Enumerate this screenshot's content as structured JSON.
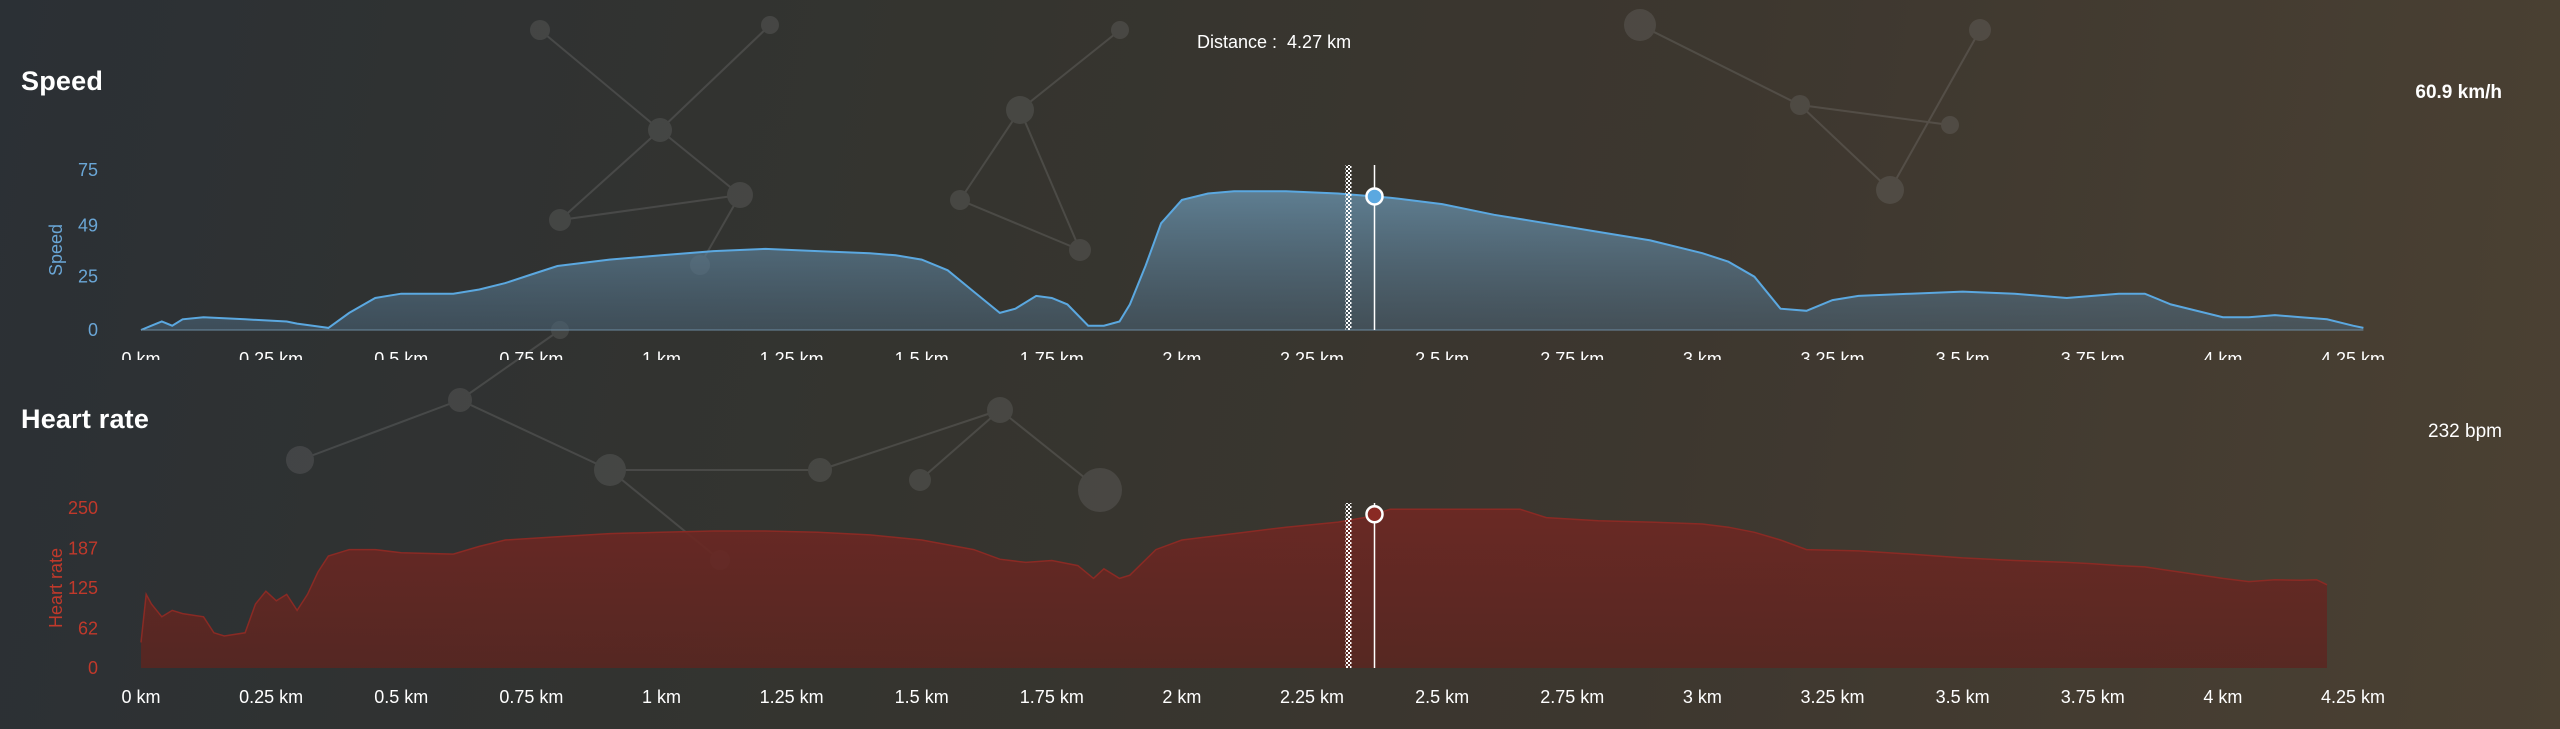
{
  "header": {
    "distance_label": "Distance :",
    "distance_value": "4.27 km"
  },
  "speed": {
    "title": "Speed",
    "current_value": "60.9 km/h"
  },
  "heart_rate": {
    "title": "Heart rate",
    "current_value": "232 bpm"
  },
  "colors": {
    "speed_line": "#5ba8e0",
    "speed_axis_text": "#6aa6d6",
    "hr_line": "#8a2a24",
    "hr_axis_text": "#c0392b",
    "cursor_line": "#ffffff"
  },
  "cursor": {
    "distance_km": 2.37,
    "marker_km": 2.32
  },
  "chart_data": [
    {
      "type": "area",
      "title": "Speed",
      "xlabel": "",
      "ylabel": "Speed",
      "xlim": [
        0,
        4.3
      ],
      "ylim": [
        0,
        75
      ],
      "yticks": [
        0,
        25,
        49,
        75
      ],
      "xticks": [
        0,
        0.25,
        0.5,
        0.75,
        1,
        1.25,
        1.5,
        1.75,
        2,
        2.25,
        2.5,
        2.75,
        3,
        3.25,
        3.5,
        3.75,
        4,
        4.25
      ],
      "xtick_labels": [
        "0 km",
        "0.25 km",
        "0.5 km",
        "0.75 km",
        "1 km",
        "1.25 km",
        "1.5 km",
        "1.75 km",
        "2 km",
        "2.25 km",
        "2.5 km",
        "2.75 km",
        "3 km",
        "3.25 km",
        "3.5 km",
        "3.75 km",
        "4 km",
        "4.25 km"
      ],
      "ytick_labels": [
        "0",
        "25",
        "49",
        "75"
      ],
      "grid": false,
      "x": [
        0,
        0.02,
        0.04,
        0.06,
        0.08,
        0.12,
        0.2,
        0.28,
        0.3,
        0.33,
        0.36,
        0.4,
        0.45,
        0.5,
        0.6,
        0.65,
        0.7,
        0.75,
        0.8,
        0.9,
        1.0,
        1.1,
        1.2,
        1.3,
        1.4,
        1.45,
        1.5,
        1.55,
        1.6,
        1.65,
        1.68,
        1.72,
        1.75,
        1.78,
        1.82,
        1.85,
        1.88,
        1.9,
        1.93,
        1.96,
        2.0,
        2.05,
        2.1,
        2.2,
        2.3,
        2.4,
        2.5,
        2.6,
        2.7,
        2.8,
        2.9,
        3.0,
        3.05,
        3.1,
        3.15,
        3.2,
        3.25,
        3.3,
        3.4,
        3.5,
        3.6,
        3.7,
        3.75,
        3.8,
        3.85,
        3.9,
        4.0,
        4.05,
        4.1,
        4.15,
        4.2,
        4.25,
        4.27
      ],
      "y": [
        0,
        2,
        4,
        2,
        5,
        6,
        5,
        4,
        3,
        2,
        1,
        8,
        15,
        17,
        17,
        19,
        22,
        26,
        30,
        33,
        35,
        37,
        38,
        37,
        36,
        35,
        33,
        28,
        18,
        8,
        10,
        16,
        15,
        12,
        2,
        2,
        4,
        12,
        30,
        50,
        61,
        64,
        65,
        65,
        64,
        62,
        59,
        54,
        50,
        46,
        42,
        36,
        32,
        25,
        10,
        9,
        14,
        16,
        17,
        18,
        17,
        15,
        16,
        17,
        17,
        12,
        6,
        6,
        7,
        6,
        5,
        2,
        1
      ]
    },
    {
      "type": "area",
      "title": "Heart rate",
      "xlabel": "",
      "ylabel": "Heart rate",
      "xlim": [
        0,
        4.3
      ],
      "ylim": [
        0,
        250
      ],
      "yticks": [
        0,
        62,
        125,
        187,
        250
      ],
      "xticks": [
        0,
        0.25,
        0.5,
        0.75,
        1,
        1.25,
        1.5,
        1.75,
        2,
        2.25,
        2.5,
        2.75,
        3,
        3.25,
        3.5,
        3.75,
        4,
        4.25
      ],
      "xtick_labels": [
        "0 km",
        "0.25 km",
        "0.5 km",
        "0.75 km",
        "1 km",
        "1.25 km",
        "1.5 km",
        "1.75 km",
        "2 km",
        "2.25 km",
        "2.5 km",
        "2.75 km",
        "3 km",
        "3.25 km",
        "3.5 km",
        "3.75 km",
        "4 km",
        "4.25 km"
      ],
      "ytick_labels": [
        "0",
        "62",
        "125",
        "187",
        "250"
      ],
      "grid": false,
      "x": [
        0,
        0.01,
        0.02,
        0.04,
        0.06,
        0.08,
        0.12,
        0.14,
        0.16,
        0.2,
        0.22,
        0.24,
        0.26,
        0.28,
        0.3,
        0.32,
        0.34,
        0.36,
        0.38,
        0.4,
        0.45,
        0.5,
        0.6,
        0.65,
        0.7,
        0.8,
        0.9,
        1.0,
        1.1,
        1.2,
        1.3,
        1.4,
        1.5,
        1.6,
        1.65,
        1.7,
        1.75,
        1.8,
        1.83,
        1.85,
        1.88,
        1.9,
        1.95,
        2.0,
        2.1,
        2.2,
        2.3,
        2.35,
        2.4,
        2.5,
        2.6,
        2.65,
        2.7,
        2.8,
        2.9,
        3.0,
        3.05,
        3.1,
        3.15,
        3.2,
        3.3,
        3.4,
        3.5,
        3.6,
        3.7,
        3.75,
        3.8,
        3.85,
        3.9,
        4.0,
        4.05,
        4.1,
        4.15,
        4.18,
        4.2
      ],
      "y": [
        40,
        115,
        100,
        80,
        90,
        85,
        80,
        55,
        50,
        55,
        100,
        120,
        105,
        115,
        90,
        115,
        150,
        175,
        180,
        185,
        185,
        180,
        178,
        190,
        200,
        205,
        210,
        212,
        214,
        214,
        212,
        208,
        200,
        185,
        170,
        165,
        168,
        160,
        140,
        155,
        140,
        145,
        185,
        200,
        210,
        220,
        228,
        235,
        248,
        248,
        248,
        248,
        235,
        230,
        228,
        225,
        220,
        212,
        200,
        185,
        183,
        178,
        172,
        168,
        165,
        163,
        160,
        158,
        152,
        140,
        135,
        138,
        137,
        138,
        130
      ]
    }
  ]
}
